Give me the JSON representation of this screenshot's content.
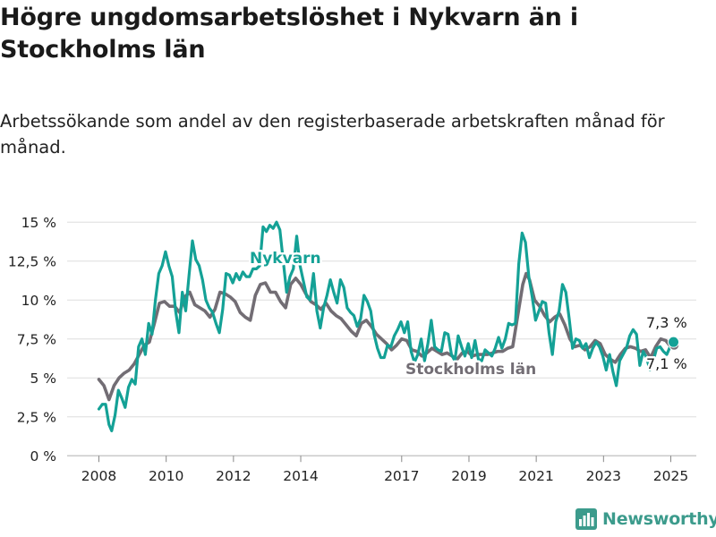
{
  "title": "Högre ungdomsarbetslöshet i Nykvarn än i Stockholms län",
  "subtitle": "Arbetssökande som andel av den registerbaserade arbetskraften månad för månad.",
  "brand": "Newsworthy",
  "colors": {
    "nykvarn": "#14a196",
    "stockholm": "#726d74",
    "grid": "#dddddd",
    "text": "#1a1a1a"
  },
  "chart_data": {
    "type": "line",
    "x_unit": "år",
    "y_unit": "%",
    "ylim": [
      0,
      15
    ],
    "xlim": [
      2007.6,
      2026.0
    ],
    "y_ticks": [
      0,
      2.5,
      5,
      7.5,
      10,
      12.5,
      15
    ],
    "y_tick_labels": [
      "0 %",
      "2,5 %",
      "5 %",
      "7,5 %",
      "10 %",
      "12,5 %",
      "15 %"
    ],
    "x_ticks": [
      2008,
      2010,
      2012,
      2014,
      2017,
      2019,
      2021,
      2023,
      2025
    ],
    "x_tick_labels": [
      "2008",
      "2010",
      "2012",
      "2014",
      "2017",
      "2019",
      "2021",
      "2023",
      "2025"
    ],
    "grid": true,
    "series": [
      {
        "name": "Nykvarn",
        "end_label": "7,3 %",
        "points": [
          [
            2008.0,
            3.0
          ],
          [
            2008.1,
            3.3
          ],
          [
            2008.2,
            3.3
          ],
          [
            2008.3,
            2.0
          ],
          [
            2008.38,
            1.6
          ],
          [
            2008.48,
            2.6
          ],
          [
            2008.58,
            4.2
          ],
          [
            2008.68,
            3.7
          ],
          [
            2008.78,
            3.1
          ],
          [
            2008.88,
            4.4
          ],
          [
            2008.98,
            4.9
          ],
          [
            2009.08,
            4.6
          ],
          [
            2009.18,
            7.0
          ],
          [
            2009.28,
            7.5
          ],
          [
            2009.38,
            6.5
          ],
          [
            2009.48,
            8.5
          ],
          [
            2009.58,
            7.8
          ],
          [
            2009.68,
            10.0
          ],
          [
            2009.78,
            11.7
          ],
          [
            2009.88,
            12.2
          ],
          [
            2009.98,
            13.1
          ],
          [
            2010.08,
            12.2
          ],
          [
            2010.18,
            11.5
          ],
          [
            2010.28,
            9.3
          ],
          [
            2010.38,
            7.9
          ],
          [
            2010.48,
            10.5
          ],
          [
            2010.58,
            9.3
          ],
          [
            2010.68,
            11.6
          ],
          [
            2010.78,
            13.8
          ],
          [
            2010.88,
            12.6
          ],
          [
            2010.98,
            12.2
          ],
          [
            2011.08,
            11.3
          ],
          [
            2011.18,
            10.0
          ],
          [
            2011.28,
            9.5
          ],
          [
            2011.38,
            9.2
          ],
          [
            2011.48,
            8.5
          ],
          [
            2011.58,
            7.9
          ],
          [
            2011.68,
            9.4
          ],
          [
            2011.78,
            11.7
          ],
          [
            2011.88,
            11.6
          ],
          [
            2011.98,
            11.1
          ],
          [
            2012.08,
            11.7
          ],
          [
            2012.18,
            11.3
          ],
          [
            2012.28,
            11.8
          ],
          [
            2012.38,
            11.5
          ],
          [
            2012.48,
            11.5
          ],
          [
            2012.58,
            12.0
          ],
          [
            2012.68,
            12.0
          ],
          [
            2012.78,
            12.2
          ],
          [
            2012.88,
            14.7
          ],
          [
            2012.98,
            14.4
          ],
          [
            2013.08,
            14.8
          ],
          [
            2013.18,
            14.6
          ],
          [
            2013.28,
            15.0
          ],
          [
            2013.38,
            14.5
          ],
          [
            2013.48,
            12.5
          ],
          [
            2013.58,
            10.5
          ],
          [
            2013.68,
            11.5
          ],
          [
            2013.78,
            12.0
          ],
          [
            2013.88,
            14.1
          ],
          [
            2013.98,
            12.2
          ],
          [
            2014.08,
            11.2
          ],
          [
            2014.18,
            10.2
          ],
          [
            2014.28,
            10.0
          ],
          [
            2014.38,
            11.7
          ],
          [
            2014.48,
            9.3
          ],
          [
            2014.58,
            8.2
          ],
          [
            2014.68,
            9.5
          ],
          [
            2014.78,
            10.3
          ],
          [
            2014.88,
            11.3
          ],
          [
            2014.98,
            10.5
          ],
          [
            2015.08,
            9.8
          ],
          [
            2015.18,
            11.3
          ],
          [
            2015.28,
            10.8
          ],
          [
            2015.38,
            9.5
          ],
          [
            2015.48,
            9.2
          ],
          [
            2015.58,
            9.0
          ],
          [
            2015.68,
            8.3
          ],
          [
            2015.78,
            8.8
          ],
          [
            2015.88,
            10.3
          ],
          [
            2015.98,
            9.9
          ],
          [
            2016.08,
            9.3
          ],
          [
            2016.18,
            7.8
          ],
          [
            2016.28,
            6.9
          ],
          [
            2016.38,
            6.3
          ],
          [
            2016.48,
            6.3
          ],
          [
            2016.58,
            7.1
          ],
          [
            2016.68,
            7.0
          ],
          [
            2016.78,
            7.7
          ],
          [
            2016.88,
            8.1
          ],
          [
            2016.98,
            8.6
          ],
          [
            2017.08,
            7.9
          ],
          [
            2017.18,
            8.6
          ],
          [
            2017.28,
            6.7
          ],
          [
            2017.38,
            6.0
          ],
          [
            2017.48,
            6.5
          ],
          [
            2017.58,
            7.5
          ],
          [
            2017.68,
            6.1
          ],
          [
            2017.78,
            7.2
          ],
          [
            2017.88,
            8.7
          ],
          [
            2017.98,
            7.0
          ],
          [
            2018.08,
            6.8
          ],
          [
            2018.18,
            6.7
          ],
          [
            2018.28,
            7.9
          ],
          [
            2018.38,
            7.8
          ],
          [
            2018.48,
            6.5
          ],
          [
            2018.58,
            6.1
          ],
          [
            2018.68,
            7.7
          ],
          [
            2018.78,
            7.0
          ],
          [
            2018.88,
            6.4
          ],
          [
            2018.98,
            7.2
          ],
          [
            2019.08,
            6.3
          ],
          [
            2019.18,
            7.4
          ],
          [
            2019.28,
            6.2
          ],
          [
            2019.38,
            6.1
          ],
          [
            2019.48,
            6.8
          ],
          [
            2019.58,
            6.6
          ],
          [
            2019.68,
            6.4
          ],
          [
            2019.78,
            6.9
          ],
          [
            2019.88,
            7.6
          ],
          [
            2019.98,
            6.9
          ],
          [
            2020.08,
            7.5
          ],
          [
            2020.18,
            8.5
          ],
          [
            2020.28,
            8.4
          ],
          [
            2020.38,
            8.5
          ],
          [
            2020.48,
            12.3
          ],
          [
            2020.58,
            14.3
          ],
          [
            2020.68,
            13.7
          ],
          [
            2020.78,
            11.5
          ],
          [
            2020.88,
            10.2
          ],
          [
            2020.98,
            8.7
          ],
          [
            2021.08,
            9.3
          ],
          [
            2021.18,
            9.9
          ],
          [
            2021.28,
            9.8
          ],
          [
            2021.38,
            7.9
          ],
          [
            2021.48,
            6.5
          ],
          [
            2021.58,
            8.6
          ],
          [
            2021.68,
            9.3
          ],
          [
            2021.78,
            11.0
          ],
          [
            2021.88,
            10.5
          ],
          [
            2021.98,
            8.8
          ],
          [
            2022.08,
            6.9
          ],
          [
            2022.18,
            7.5
          ],
          [
            2022.28,
            7.4
          ],
          [
            2022.38,
            6.9
          ],
          [
            2022.48,
            7.2
          ],
          [
            2022.58,
            6.3
          ],
          [
            2022.68,
            6.9
          ],
          [
            2022.78,
            7.3
          ],
          [
            2022.88,
            7.0
          ],
          [
            2022.98,
            6.4
          ],
          [
            2023.08,
            5.5
          ],
          [
            2023.18,
            6.5
          ],
          [
            2023.28,
            5.4
          ],
          [
            2023.38,
            4.5
          ],
          [
            2023.48,
            6.1
          ],
          [
            2023.58,
            6.5
          ],
          [
            2023.68,
            6.9
          ],
          [
            2023.78,
            7.7
          ],
          [
            2023.88,
            8.1
          ],
          [
            2023.98,
            7.8
          ],
          [
            2024.08,
            5.8
          ],
          [
            2024.18,
            6.7
          ],
          [
            2024.28,
            6.3
          ],
          [
            2024.38,
            5.5
          ],
          [
            2024.48,
            6.1
          ],
          [
            2024.58,
            6.9
          ],
          [
            2024.68,
            7.0
          ],
          [
            2024.78,
            6.7
          ],
          [
            2024.88,
            6.5
          ],
          [
            2024.98,
            7.0
          ],
          [
            2025.08,
            7.3
          ]
        ]
      },
      {
        "name": "Stockholms län",
        "end_label": "7,1 %",
        "points": [
          [
            2008.0,
            4.9
          ],
          [
            2008.15,
            4.5
          ],
          [
            2008.3,
            3.6
          ],
          [
            2008.45,
            4.5
          ],
          [
            2008.6,
            5.0
          ],
          [
            2008.75,
            5.3
          ],
          [
            2008.9,
            5.5
          ],
          [
            2009.05,
            5.9
          ],
          [
            2009.2,
            6.5
          ],
          [
            2009.35,
            7.1
          ],
          [
            2009.5,
            7.3
          ],
          [
            2009.65,
            8.5
          ],
          [
            2009.8,
            9.8
          ],
          [
            2009.95,
            9.9
          ],
          [
            2010.1,
            9.6
          ],
          [
            2010.25,
            9.6
          ],
          [
            2010.4,
            9.2
          ],
          [
            2010.55,
            10.2
          ],
          [
            2010.7,
            10.5
          ],
          [
            2010.85,
            9.7
          ],
          [
            2011.0,
            9.5
          ],
          [
            2011.15,
            9.3
          ],
          [
            2011.3,
            8.9
          ],
          [
            2011.45,
            9.4
          ],
          [
            2011.6,
            10.5
          ],
          [
            2011.75,
            10.4
          ],
          [
            2011.9,
            10.2
          ],
          [
            2012.05,
            9.9
          ],
          [
            2012.2,
            9.2
          ],
          [
            2012.35,
            8.9
          ],
          [
            2012.5,
            8.7
          ],
          [
            2012.65,
            10.3
          ],
          [
            2012.8,
            11.0
          ],
          [
            2012.95,
            11.1
          ],
          [
            2013.1,
            10.5
          ],
          [
            2013.25,
            10.5
          ],
          [
            2013.4,
            9.9
          ],
          [
            2013.55,
            9.5
          ],
          [
            2013.7,
            11.0
          ],
          [
            2013.85,
            11.4
          ],
          [
            2014.0,
            11.0
          ],
          [
            2014.15,
            10.4
          ],
          [
            2014.3,
            9.9
          ],
          [
            2014.45,
            9.7
          ],
          [
            2014.6,
            9.4
          ],
          [
            2014.75,
            9.8
          ],
          [
            2014.9,
            9.3
          ],
          [
            2015.05,
            9.0
          ],
          [
            2015.2,
            8.8
          ],
          [
            2015.35,
            8.4
          ],
          [
            2015.5,
            8.0
          ],
          [
            2015.65,
            7.7
          ],
          [
            2015.8,
            8.5
          ],
          [
            2015.95,
            8.7
          ],
          [
            2016.1,
            8.3
          ],
          [
            2016.25,
            7.8
          ],
          [
            2016.4,
            7.5
          ],
          [
            2016.55,
            7.2
          ],
          [
            2016.7,
            6.8
          ],
          [
            2016.85,
            7.1
          ],
          [
            2017.0,
            7.5
          ],
          [
            2017.15,
            7.4
          ],
          [
            2017.3,
            6.8
          ],
          [
            2017.45,
            6.7
          ],
          [
            2017.6,
            6.4
          ],
          [
            2017.75,
            6.6
          ],
          [
            2017.9,
            6.9
          ],
          [
            2018.05,
            6.7
          ],
          [
            2018.2,
            6.5
          ],
          [
            2018.35,
            6.6
          ],
          [
            2018.5,
            6.4
          ],
          [
            2018.65,
            6.2
          ],
          [
            2018.8,
            6.6
          ],
          [
            2018.95,
            6.7
          ],
          [
            2019.1,
            6.4
          ],
          [
            2019.25,
            6.5
          ],
          [
            2019.4,
            6.5
          ],
          [
            2019.55,
            6.5
          ],
          [
            2019.7,
            6.6
          ],
          [
            2019.85,
            6.7
          ],
          [
            2020.0,
            6.7
          ],
          [
            2020.15,
            6.9
          ],
          [
            2020.3,
            7.0
          ],
          [
            2020.45,
            9.0
          ],
          [
            2020.6,
            11.0
          ],
          [
            2020.7,
            11.7
          ],
          [
            2020.8,
            11.3
          ],
          [
            2020.95,
            10.0
          ],
          [
            2021.1,
            9.6
          ],
          [
            2021.25,
            9.0
          ],
          [
            2021.4,
            8.6
          ],
          [
            2021.55,
            8.9
          ],
          [
            2021.7,
            9.1
          ],
          [
            2021.85,
            8.4
          ],
          [
            2022.0,
            7.5
          ],
          [
            2022.15,
            7.0
          ],
          [
            2022.3,
            7.1
          ],
          [
            2022.45,
            6.8
          ],
          [
            2022.6,
            7.0
          ],
          [
            2022.75,
            7.4
          ],
          [
            2022.9,
            7.2
          ],
          [
            2023.05,
            6.5
          ],
          [
            2023.2,
            6.2
          ],
          [
            2023.35,
            6.0
          ],
          [
            2023.5,
            6.5
          ],
          [
            2023.65,
            6.9
          ],
          [
            2023.8,
            7.0
          ],
          [
            2023.95,
            6.9
          ],
          [
            2024.1,
            6.7
          ],
          [
            2024.25,
            6.8
          ],
          [
            2024.4,
            6.3
          ],
          [
            2024.55,
            7.0
          ],
          [
            2024.7,
            7.5
          ],
          [
            2024.85,
            7.4
          ],
          [
            2025.0,
            7.0
          ],
          [
            2025.1,
            7.1
          ]
        ]
      }
    ]
  }
}
